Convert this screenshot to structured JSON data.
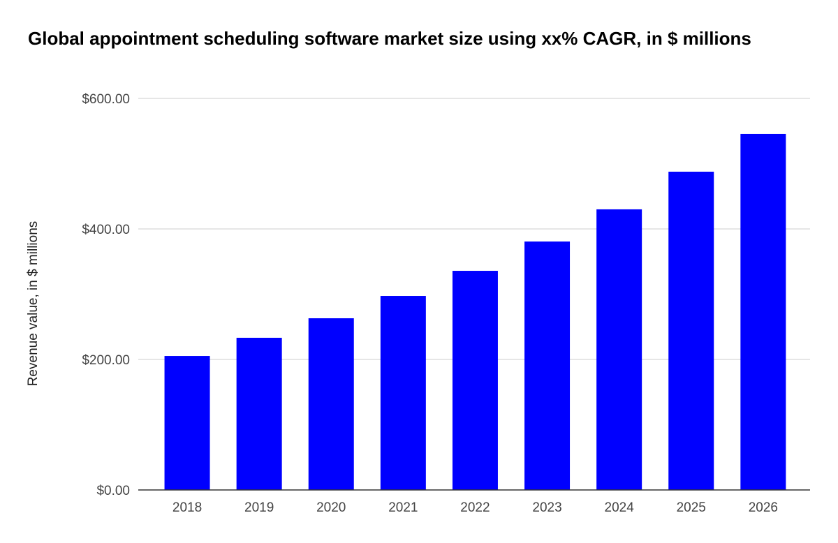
{
  "chart_data": {
    "type": "bar",
    "title": "Global appointment scheduling software market size using xx% CAGR, in $ millions",
    "xlabel": "",
    "ylabel": "Revenue value, in $ millions",
    "categories": [
      "2018",
      "2019",
      "2020",
      "2021",
      "2022",
      "2023",
      "2024",
      "2025",
      "2026"
    ],
    "values": [
      205.3,
      233.2,
      263.1,
      297.3,
      335.8,
      380.7,
      430.0,
      487.7,
      545.5
    ],
    "ylim": [
      0,
      600
    ],
    "yticks": [
      0,
      200,
      400,
      600
    ],
    "ytick_labels": [
      "$0.00",
      "$200.00",
      "$400.00",
      "$600.00"
    ],
    "grid": true,
    "legend": "none",
    "bar_color": "#0000ff"
  }
}
